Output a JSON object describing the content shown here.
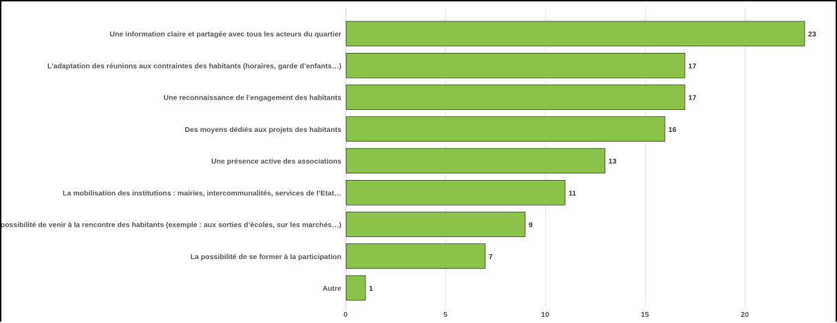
{
  "chart_data": {
    "type": "bar",
    "orientation": "horizontal",
    "title": "",
    "xlabel": "",
    "ylabel": "",
    "categories": [
      "Une information claire et partagée avec tous les acteurs du quartier",
      "L’adaptation des réunions aux contraintes des habitants (horaires, garde d’enfants…)",
      "Une reconnaissance de l’engagement des habitants",
      "Des moyens dédiés aux projets des habitants",
      "Une présence active des associations",
      "La mobilisation des institutions : mairies, intercommunalités, services de l’Etat…",
      "La possibilité de venir à la rencontre des habitants (exemple : aux sorties d’écoles, sur les marchés…)",
      "La possibilité de se former à la participation",
      "Autre"
    ],
    "values": [
      23,
      17,
      17,
      16,
      13,
      11,
      9,
      7,
      1
    ],
    "value_labels": [
      "23",
      "17",
      "17",
      "16",
      "13",
      "11",
      "9",
      "7",
      "1"
    ],
    "xlim": [
      0,
      24
    ],
    "x_ticks": [
      0,
      5,
      10,
      15,
      20
    ],
    "x_tick_labels": [
      "0",
      "5",
      "10",
      "15",
      "20"
    ],
    "bar_color": "#8bc34a",
    "grid": true,
    "legend": "none"
  }
}
